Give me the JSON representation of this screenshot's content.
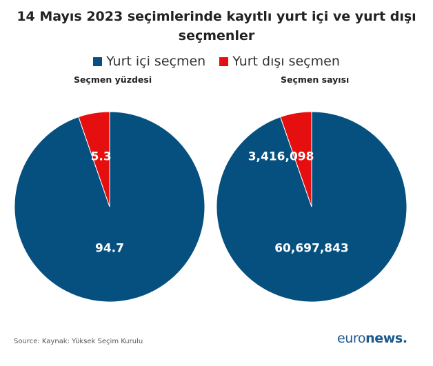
{
  "title": "14 Mayıs 2023 seçimlerinde kayıtlı yurt içi ve yurt dışı seçmenler",
  "legend": [
    {
      "label": "Yurt içi seçmen",
      "color": "#06507f"
    },
    {
      "label": "Yurt dışı seçmen",
      "color": "#e60f0f"
    }
  ],
  "source": "Source: Kaynak: Yüksek Seçim Kurulu",
  "brand": {
    "euro": "euro",
    "news": "news",
    "dot": "."
  },
  "chart_data": [
    {
      "type": "pie",
      "title": "Seçmen yüzdesi",
      "categories": [
        "Yurt içi seçmen",
        "Yurt dışı seçmen"
      ],
      "values": [
        94.7,
        5.3
      ],
      "labels": [
        "94.7",
        "5.3"
      ],
      "colors": [
        "#06507f",
        "#e60f0f"
      ]
    },
    {
      "type": "pie",
      "title": "Seçmen sayısı",
      "categories": [
        "Yurt içi seçmen",
        "Yurt dışı seçmen"
      ],
      "values": [
        60697843,
        3416098
      ],
      "labels": [
        "60,697,843",
        "3,416,098"
      ],
      "colors": [
        "#06507f",
        "#e60f0f"
      ]
    }
  ]
}
